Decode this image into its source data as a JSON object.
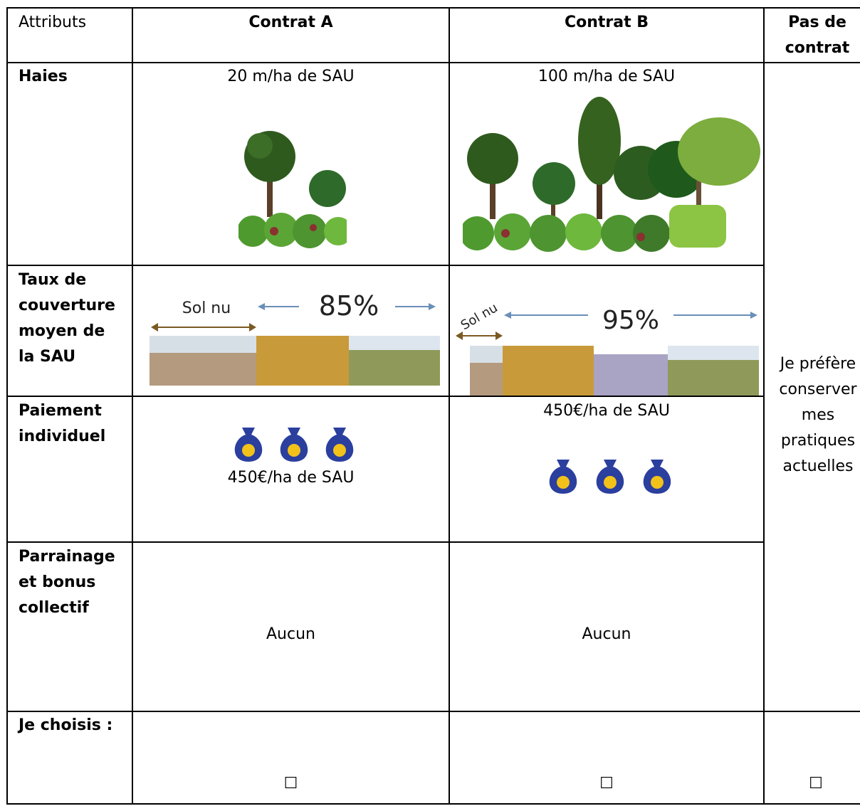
{
  "table": {
    "header": [
      "Attributs",
      "Contrat A",
      "Contrat B",
      "Pas de contrat"
    ],
    "rows": [
      {
        "attribute": "Haies",
        "contract_a": "20 m/ha de SAU",
        "contract_b": "100 m/ha de SAU"
      },
      {
        "attribute": "Taux de couverture moyen de la SAU",
        "contract_a": {
          "bare_soil": "Sol nu",
          "coverage": "85%"
        },
        "contract_b": {
          "bare_soil": "Sol nu",
          "coverage": "95%"
        }
      },
      {
        "attribute": "Paiement individuel",
        "contract_a": "450€/ha de SAU",
        "contract_b": "450€/ha de SAU"
      },
      {
        "attribute": "Parrainage et bonus collectif",
        "contract_a": "Aucun",
        "contract_b": "Aucun"
      },
      {
        "attribute": "Je choisis :",
        "contract_a": "☐",
        "contract_b": "☐",
        "no_contract": "☐"
      }
    ],
    "no_contract_text": "Je préfère conserver mes pratiques actuelles"
  }
}
